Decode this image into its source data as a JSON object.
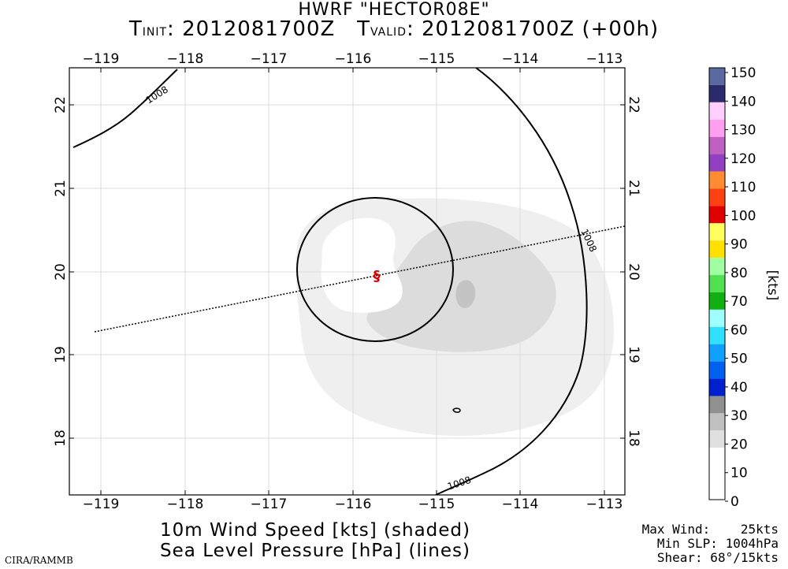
{
  "header": {
    "model_line": "HWRF \"HECTOR08E\"",
    "t_init_label": "T",
    "t_init_sub": "INIT",
    "t_init_value": ": 2012081700Z",
    "t_valid_label": "T",
    "t_valid_sub": "VALID",
    "t_valid_value": ": 2012081700Z (+00h)"
  },
  "map": {
    "lon_ticks": [
      "−119",
      "−118",
      "−117",
      "−116",
      "−115",
      "−114",
      "−113"
    ],
    "lat_ticks": [
      "18",
      "19",
      "20",
      "21",
      "22"
    ],
    "contour_label": "1008",
    "storm_symbol": "§"
  },
  "colorbar": {
    "unit_label": "[kts]",
    "labels": [
      "150",
      "140",
      "130",
      "120",
      "110",
      "100",
      "90",
      "80",
      "70",
      "60",
      "50",
      "40",
      "30",
      "20",
      "10",
      "0"
    ],
    "colors": [
      "#5a6aa0",
      "#2a2a6a",
      "#ffd0ff",
      "#ff9ff0",
      "#c060c0",
      "#9040c0",
      "#ff8c30",
      "#ff4010",
      "#e00000",
      "#ffff60",
      "#ffe000",
      "#a0ffa0",
      "#50e050",
      "#10b010",
      "#a0ffff",
      "#30e0ff",
      "#10a0ff",
      "#0060f0",
      "#0020d0",
      "#909090",
      "#c0c0c0",
      "#e0e0e0",
      "#ffffff",
      "#ffffff",
      "#ffffff"
    ]
  },
  "caption": {
    "line1": "10m Wind Speed [kts] (shaded)",
    "line2": "Sea Level Pressure [hPa] (lines)"
  },
  "stats": {
    "max_wind": "Max Wind:    25kts",
    "min_slp": "Min SLP: 1004hPa",
    "shear": "Shear: 68°/15kts"
  },
  "credit": "CIRA/RAMMB"
}
